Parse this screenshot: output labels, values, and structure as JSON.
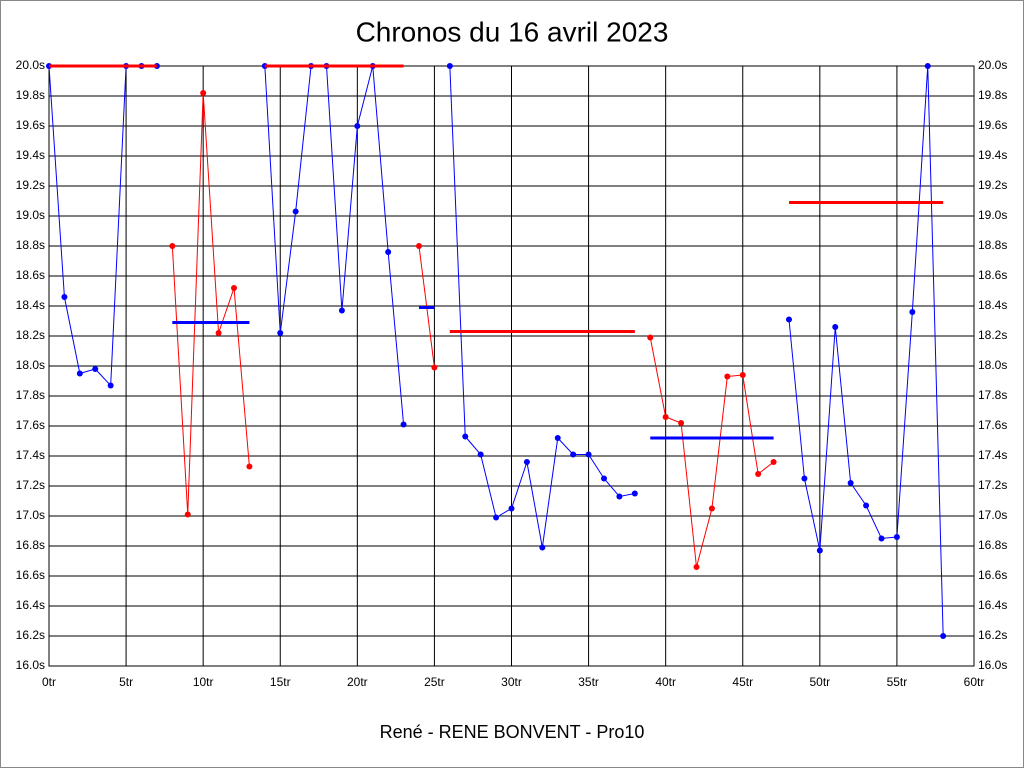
{
  "chart_data": {
    "type": "line",
    "title": "Chronos du 16 avril 2023",
    "x_label": "René - RENE BONVENT - Pro10",
    "xlim": [
      0,
      60
    ],
    "xticks": [
      {
        "value": 0,
        "label": "0tr"
      },
      {
        "value": 5,
        "label": "5tr"
      },
      {
        "value": 10,
        "label": "10tr"
      },
      {
        "value": 15,
        "label": "15tr"
      },
      {
        "value": 20,
        "label": "20tr"
      },
      {
        "value": 25,
        "label": "25tr"
      },
      {
        "value": 30,
        "label": "30tr"
      },
      {
        "value": 35,
        "label": "35tr"
      },
      {
        "value": 40,
        "label": "40tr"
      },
      {
        "value": 45,
        "label": "45tr"
      },
      {
        "value": 50,
        "label": "50tr"
      },
      {
        "value": 55,
        "label": "55tr"
      },
      {
        "value": 60,
        "label": "60tr"
      }
    ],
    "ylim": [
      16.0,
      20.0
    ],
    "yticks": [
      {
        "value": 16.0,
        "label": "16.0s"
      },
      {
        "value": 16.2,
        "label": "16.2s"
      },
      {
        "value": 16.4,
        "label": "16.4s"
      },
      {
        "value": 16.6,
        "label": "16.6s"
      },
      {
        "value": 16.8,
        "label": "16.8s"
      },
      {
        "value": 17.0,
        "label": "17.0s"
      },
      {
        "value": 17.2,
        "label": "17.2s"
      },
      {
        "value": 17.4,
        "label": "17.4s"
      },
      {
        "value": 17.6,
        "label": "17.6s"
      },
      {
        "value": 17.8,
        "label": "17.8s"
      },
      {
        "value": 18.0,
        "label": "18.0s"
      },
      {
        "value": 18.2,
        "label": "18.2s"
      },
      {
        "value": 18.4,
        "label": "18.4s"
      },
      {
        "value": 18.6,
        "label": "18.6s"
      },
      {
        "value": 18.8,
        "label": "18.8s"
      },
      {
        "value": 19.0,
        "label": "19.0s"
      },
      {
        "value": 19.2,
        "label": "19.2s"
      },
      {
        "value": 19.4,
        "label": "19.4s"
      },
      {
        "value": 19.6,
        "label": "19.6s"
      },
      {
        "value": 19.8,
        "label": "19.8s"
      },
      {
        "value": 20.0,
        "label": "20.0s"
      }
    ],
    "grid": true,
    "series": [
      {
        "color": "#0000ff",
        "x": [
          0,
          1,
          2,
          3,
          4,
          5,
          6,
          7
        ],
        "values": [
          20.0,
          18.46,
          17.95,
          17.98,
          17.87,
          20.0,
          20.0,
          20.0
        ]
      },
      {
        "color": "#ff0000",
        "x": [
          8,
          9,
          10,
          11,
          12,
          13
        ],
        "values": [
          18.8,
          17.01,
          19.82,
          18.22,
          18.52,
          17.33
        ]
      },
      {
        "color": "#0000ff",
        "x": [
          14,
          15,
          16,
          17,
          18,
          19,
          20,
          21,
          22,
          23
        ],
        "values": [
          20.0,
          18.22,
          19.03,
          20.0,
          20.0,
          18.37,
          19.6,
          20.0,
          18.76,
          17.61
        ]
      },
      {
        "color": "#ff0000",
        "x": [
          24,
          25
        ],
        "values": [
          18.8,
          17.99
        ]
      },
      {
        "color": "#0000ff",
        "x": [
          26,
          27,
          28,
          29,
          30,
          31,
          32,
          33,
          34,
          35,
          36,
          37,
          38
        ],
        "values": [
          20.0,
          17.53,
          17.41,
          16.99,
          17.05,
          17.36,
          16.79,
          17.52,
          17.41,
          17.41,
          17.25,
          17.13,
          17.15
        ]
      },
      {
        "color": "#ff0000",
        "x": [
          39,
          40,
          41,
          42,
          43,
          44,
          45,
          46,
          47
        ],
        "values": [
          18.19,
          17.66,
          17.62,
          16.66,
          17.05,
          17.93,
          17.94,
          17.28,
          17.36
        ]
      },
      {
        "color": "#0000ff",
        "x": [
          48,
          49,
          50,
          51,
          52,
          53,
          54,
          55,
          56,
          57,
          58
        ],
        "values": [
          18.31,
          17.25,
          16.77,
          18.26,
          17.22,
          17.07,
          16.85,
          16.86,
          18.36,
          20.0,
          16.2
        ]
      }
    ],
    "reference_lines": [
      {
        "color": "#ff0000",
        "x_start": 0,
        "x_end": 7,
        "value": 20.0
      },
      {
        "color": "#0000ff",
        "x_start": 8,
        "x_end": 13,
        "value": 18.29
      },
      {
        "color": "#ff0000",
        "x_start": 14,
        "x_end": 23,
        "value": 20.0
      },
      {
        "color": "#0000ff",
        "x_start": 24,
        "x_end": 25,
        "value": 18.39
      },
      {
        "color": "#ff0000",
        "x_start": 26,
        "x_end": 38,
        "value": 18.23
      },
      {
        "color": "#0000ff",
        "x_start": 39,
        "x_end": 47,
        "value": 17.52
      },
      {
        "color": "#ff0000",
        "x_start": 48,
        "x_end": 58,
        "value": 19.09
      }
    ]
  }
}
